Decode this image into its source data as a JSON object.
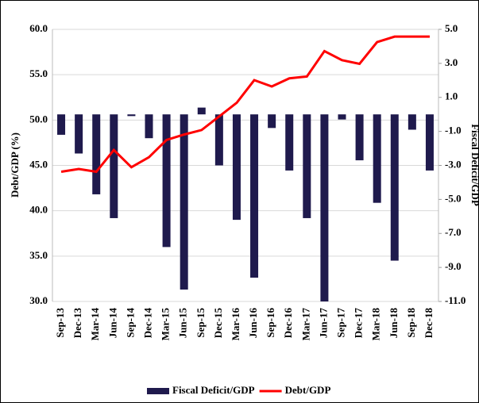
{
  "chart_data": {
    "type": "bar-line",
    "categories": [
      "Sep-13",
      "Dec-13",
      "Mar-14",
      "Jun-14",
      "Sep-14",
      "Dec-14",
      "Mar-15",
      "Jun-15",
      "Sep-15",
      "Dec-15",
      "Mar-16",
      "Jun-16",
      "Sep-16",
      "Dec-16",
      "Mar-17",
      "Jun-17",
      "Sep-17",
      "Dec-17",
      "Mar-18",
      "Jun-18",
      "Sep-18",
      "Dec-18"
    ],
    "series": [
      {
        "name": "Fiscal Deficit/GDP",
        "type": "bar",
        "axis": "y2",
        "color": "#1f1a4d",
        "values": [
          -1.2,
          -2.3,
          -4.7,
          -6.1,
          -0.1,
          -1.4,
          -7.8,
          -10.3,
          0.4,
          -3.0,
          -6.2,
          -9.6,
          -0.8,
          -3.3,
          -6.1,
          -11.0,
          -0.3,
          -2.7,
          -5.2,
          -8.6,
          -0.9,
          -3.3
        ]
      },
      {
        "name": "Debt/GDP",
        "type": "line",
        "color": "#ff0000",
        "values": [
          44.3,
          44.6,
          44.3,
          46.7,
          44.8,
          45.9,
          47.8,
          48.4,
          48.9,
          50.4,
          51.9,
          54.4,
          53.7,
          54.6,
          54.8,
          57.6,
          56.6,
          56.2,
          58.6,
          59.2,
          59.2,
          59.2
        ]
      }
    ],
    "y_label": "Debt/GDP (%)",
    "y2_label": "Fiscal Deficit/GDP",
    "ylim": [
      30,
      60
    ],
    "yticks": [
      {
        "value": 30,
        "label": "30.0"
      },
      {
        "value": 35,
        "label": "35.0"
      },
      {
        "value": 40,
        "label": "40.0"
      },
      {
        "value": 45,
        "label": "45.0"
      },
      {
        "value": 50,
        "label": "50.0"
      },
      {
        "value": 55,
        "label": "55.0"
      },
      {
        "value": 60,
        "label": "60.0"
      }
    ],
    "y2lim": [
      -11,
      5
    ],
    "y2ticks": [
      {
        "value": -11,
        "label": "-11.0"
      },
      {
        "value": -9,
        "label": "-9.0"
      },
      {
        "value": -7,
        "label": "-7.0"
      },
      {
        "value": -5,
        "label": "-5.0"
      },
      {
        "value": -3,
        "label": "-3.0"
      },
      {
        "value": -1,
        "label": "-1.0"
      },
      {
        "value": 1,
        "label": "1.0"
      },
      {
        "value": 3,
        "label": "3.0"
      },
      {
        "value": 5,
        "label": "5.0"
      }
    ],
    "grid": true,
    "legend": "bottom"
  }
}
